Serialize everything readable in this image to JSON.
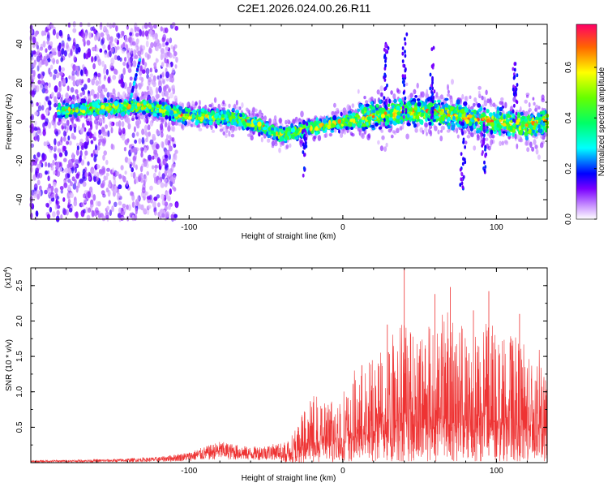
{
  "title": "C2E1.2026.024.00.26.R11",
  "chart_data": [
    {
      "type": "heatmap",
      "name": "spectrogram",
      "xlabel": "Height of straight line (km)",
      "ylabel": "Frequency (Hz)",
      "xlim": [
        -203,
        133
      ],
      "ylim": [
        -50,
        50
      ],
      "xticks": [
        -100,
        0,
        100
      ],
      "yticks": [
        -40,
        -20,
        0,
        20,
        40
      ],
      "xtick_labels": [
        "-100",
        "0",
        "100"
      ],
      "ytick_labels": [
        "-40",
        "-20",
        "0",
        "20",
        "40"
      ],
      "colorbar": {
        "label": "Normalized spectral amplitude",
        "range": [
          0.0,
          0.77
        ],
        "ticks": [
          0.0,
          0.2,
          0.4,
          0.6
        ],
        "tick_labels": [
          "0.0",
          "0.2",
          "0.4",
          "0.6"
        ],
        "stops": [
          {
            "v": 0.0,
            "color": "#ffffff"
          },
          {
            "v": 0.05,
            "color": "#cc99ff"
          },
          {
            "v": 0.12,
            "color": "#7a00ff"
          },
          {
            "v": 0.18,
            "color": "#0000ff"
          },
          {
            "v": 0.28,
            "color": "#00ffff"
          },
          {
            "v": 0.38,
            "color": "#00ff66"
          },
          {
            "v": 0.48,
            "color": "#66ff00"
          },
          {
            "v": 0.58,
            "color": "#ffff00"
          },
          {
            "v": 0.68,
            "color": "#ff6600"
          },
          {
            "v": 0.77,
            "color": "#ff0066"
          }
        ]
      },
      "ridge_center_hz": [
        {
          "x": -180,
          "y": 6
        },
        {
          "x": -130,
          "y": 8
        },
        {
          "x": -100,
          "y": 3
        },
        {
          "x": -70,
          "y": 2
        },
        {
          "x": -50,
          "y": -3
        },
        {
          "x": -40,
          "y": -7
        },
        {
          "x": -20,
          "y": -3
        },
        {
          "x": 0,
          "y": 0
        },
        {
          "x": 20,
          "y": 3
        },
        {
          "x": 40,
          "y": 5
        },
        {
          "x": 60,
          "y": 5
        },
        {
          "x": 80,
          "y": 2
        },
        {
          "x": 100,
          "y": 0
        },
        {
          "x": 120,
          "y": -2
        },
        {
          "x": 133,
          "y": 0
        }
      ]
    },
    {
      "type": "line",
      "name": "snr",
      "xlabel": "Height of straight line (km)",
      "ylabel": "SNR (10 * v/v)",
      "y_scale_label": "(x10",
      "y_scale_exponent": "4",
      "y_scale_suffix": ")",
      "xlim": [
        -203,
        133
      ],
      "ylim": [
        0.0,
        2.75
      ],
      "xticks": [
        -100,
        0,
        100
      ],
      "xtick_labels": [
        "-100",
        "0",
        "100"
      ],
      "yticks": [
        0.5,
        1.0,
        1.5,
        2.0,
        2.5
      ],
      "ytick_labels": [
        "0.5",
        "1.0",
        "1.5",
        "2.0",
        "2.5"
      ],
      "color": "#ee3333",
      "envelope": [
        {
          "x": -203,
          "y": 0.03
        },
        {
          "x": -150,
          "y": 0.05
        },
        {
          "x": -120,
          "y": 0.08
        },
        {
          "x": -100,
          "y": 0.15
        },
        {
          "x": -80,
          "y": 0.3
        },
        {
          "x": -60,
          "y": 0.22
        },
        {
          "x": -40,
          "y": 0.28
        },
        {
          "x": -30,
          "y": 0.55
        },
        {
          "x": -20,
          "y": 0.95
        },
        {
          "x": -10,
          "y": 0.9
        },
        {
          "x": 0,
          "y": 1.0
        },
        {
          "x": 10,
          "y": 1.4
        },
        {
          "x": 20,
          "y": 1.5
        },
        {
          "x": 30,
          "y": 1.8
        },
        {
          "x": 40,
          "y": 2.2
        },
        {
          "x": 50,
          "y": 1.9
        },
        {
          "x": 60,
          "y": 2.0
        },
        {
          "x": 70,
          "y": 2.2
        },
        {
          "x": 80,
          "y": 1.9
        },
        {
          "x": 90,
          "y": 2.1
        },
        {
          "x": 100,
          "y": 1.9
        },
        {
          "x": 110,
          "y": 1.8
        },
        {
          "x": 120,
          "y": 1.7
        },
        {
          "x": 133,
          "y": 1.55
        }
      ],
      "peaks": [
        {
          "x": 40,
          "y": 2.75
        },
        {
          "x": 70,
          "y": 2.48
        },
        {
          "x": 60,
          "y": 2.38
        },
        {
          "x": 95,
          "y": 2.42
        },
        {
          "x": 29,
          "y": 1.95
        },
        {
          "x": 115,
          "y": 2.1
        },
        {
          "x": 85,
          "y": 2.15
        }
      ]
    }
  ]
}
